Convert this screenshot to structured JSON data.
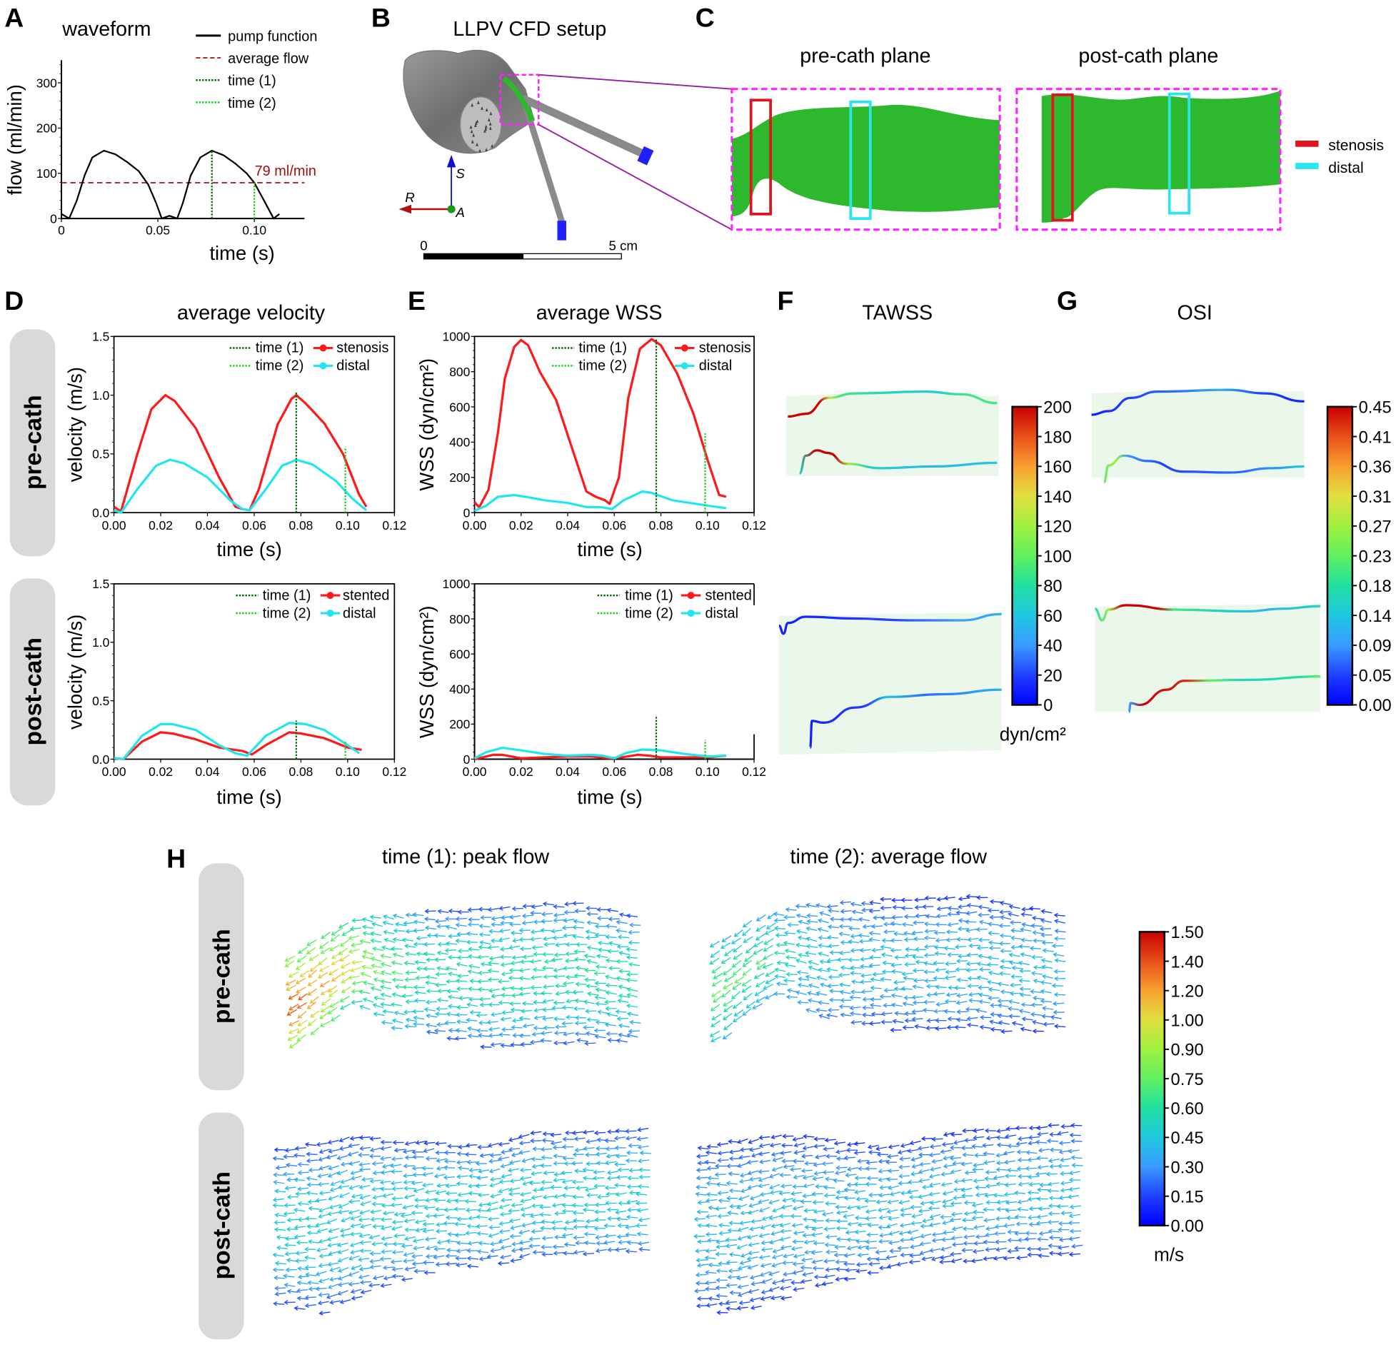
{
  "panel_labels": {
    "A": "A",
    "B": "B",
    "C": "C",
    "D": "D",
    "E": "E",
    "F": "F",
    "G": "G",
    "H": "H"
  },
  "titles": {
    "setup": "LLPV CFD setup",
    "pre_plane": "pre-cath plane",
    "post_plane": "post-cath plane",
    "velocity": "average velocity",
    "wss": "average WSS",
    "tawss": "TAWSS",
    "osi": "OSI",
    "h_time1": "time (1): peak flow",
    "h_time2": "time (2): average flow"
  },
  "row_labels": {
    "pre": "pre-cath",
    "post": "post-cath"
  },
  "setup": {
    "axis_s": "S",
    "axis_r": "R",
    "axis_a": "A",
    "scale_start": "0",
    "scale_end": "5 cm"
  },
  "plane_legend": [
    {
      "label": "stenosis",
      "color": "#e0141e"
    },
    {
      "label": "distal",
      "color": "#28e6ee"
    }
  ],
  "colors": {
    "vessel_green": "#2db82d",
    "zoom_box": "#ff22ff",
    "connector": "#9b1ca0",
    "wall_fill": "#ecf7ec",
    "pill": "#d9d9d9"
  },
  "colorbars": {
    "tawss": {
      "ticks": [
        "200",
        "180",
        "160",
        "140",
        "120",
        "100",
        "80",
        "60",
        "40",
        "20",
        "0"
      ],
      "unit": "dyn/cm²",
      "range": [
        0,
        200
      ]
    },
    "osi": {
      "ticks": [
        "0.45",
        "0.41",
        "0.36",
        "0.31",
        "0.27",
        "0.23",
        "0.18",
        "0.14",
        "0.09",
        "0.05",
        "0.00"
      ],
      "range": [
        0,
        0.45
      ]
    },
    "velocity": {
      "ticks": [
        "1.50",
        "1.40",
        "1.20",
        "1.00",
        "0.90",
        "0.75",
        "0.60",
        "0.45",
        "0.30",
        "0.15",
        "0.00"
      ],
      "unit": "m/s",
      "range": [
        0,
        1.5
      ]
    },
    "colormap": "rainbow (blue-cyan-green-yellow-red)"
  },
  "chart_data": [
    {
      "id": "waveform",
      "type": "line",
      "title": "waveform",
      "xlabel": "time (s)",
      "ylabel": "flow (ml/min)",
      "xlim": [
        0,
        0.126
      ],
      "ylim": [
        0,
        350
      ],
      "xticks": [
        0,
        0.05,
        0.1
      ],
      "xtick_labels": [
        "0",
        "0.05",
        "0.10"
      ],
      "yticks": [
        0,
        100,
        200,
        300
      ],
      "ytick_labels": [
        "0",
        "100",
        "200",
        "300"
      ],
      "series": [
        {
          "name": "pump function",
          "color": "#000000",
          "points": [
            [
              0,
              10
            ],
            [
              0.004,
              0
            ],
            [
              0.008,
              40
            ],
            [
              0.012,
              95
            ],
            [
              0.016,
              135
            ],
            [
              0.022,
              150
            ],
            [
              0.028,
              142
            ],
            [
              0.034,
              125
            ],
            [
              0.04,
              105
            ],
            [
              0.045,
              75
            ],
            [
              0.049,
              35
            ],
            [
              0.052,
              0
            ],
            [
              0.056,
              6
            ],
            [
              0.06,
              0
            ],
            [
              0.063,
              35
            ],
            [
              0.067,
              95
            ],
            [
              0.072,
              135
            ],
            [
              0.078,
              150
            ],
            [
              0.084,
              140
            ],
            [
              0.09,
              122
            ],
            [
              0.096,
              100
            ],
            [
              0.1,
              79
            ],
            [
              0.105,
              40
            ],
            [
              0.11,
              0
            ],
            [
              0.113,
              10
            ]
          ]
        }
      ],
      "hlines": [
        {
          "name": "average flow",
          "y": 79,
          "label": "79 ml/min",
          "color": "#a01010"
        }
      ],
      "vlines": [
        {
          "name": "time (1)",
          "x": 0.078,
          "ymax": 150,
          "color": "#0b6b0b"
        },
        {
          "name": "time (2)",
          "x": 0.1,
          "ymax": 79,
          "color": "#22cc22"
        }
      ],
      "legend": "top-right"
    },
    {
      "id": "velocity_pre",
      "type": "line",
      "title": "average velocity",
      "row": "pre-cath",
      "xlabel": "time (s)",
      "ylabel": "velocity (m/s)",
      "xlim": [
        0,
        0.12
      ],
      "ylim": [
        0,
        1.5
      ],
      "xticks": [
        0,
        0.02,
        0.04,
        0.06,
        0.08,
        0.1,
        0.12
      ],
      "xtick_labels": [
        "0.00",
        "0.02",
        "0.04",
        "0.06",
        "0.08",
        "0.10",
        "0.12"
      ],
      "yticks": [
        0,
        0.5,
        1.0,
        1.5
      ],
      "ytick_labels": [
        "0.0",
        "0.5",
        "1.0",
        "1.5"
      ],
      "series": [
        {
          "name": "stenosis",
          "color": "#ff1a1a",
          "points": [
            [
              0,
              0.05
            ],
            [
              0.003,
              0.01
            ],
            [
              0.01,
              0.5
            ],
            [
              0.016,
              0.88
            ],
            [
              0.022,
              1.0
            ],
            [
              0.026,
              0.95
            ],
            [
              0.035,
              0.72
            ],
            [
              0.045,
              0.3
            ],
            [
              0.052,
              0.05
            ],
            [
              0.055,
              0.03
            ],
            [
              0.058,
              0.02
            ],
            [
              0.062,
              0.2
            ],
            [
              0.07,
              0.75
            ],
            [
              0.076,
              0.97
            ],
            [
              0.078,
              1.0
            ],
            [
              0.082,
              0.93
            ],
            [
              0.09,
              0.76
            ],
            [
              0.098,
              0.5
            ],
            [
              0.105,
              0.15
            ],
            [
              0.108,
              0.05
            ]
          ]
        },
        {
          "name": "distal",
          "color": "#22e5f0",
          "points": [
            [
              0,
              0.02
            ],
            [
              0.003,
              0.0
            ],
            [
              0.01,
              0.2
            ],
            [
              0.018,
              0.4
            ],
            [
              0.024,
              0.45
            ],
            [
              0.03,
              0.42
            ],
            [
              0.04,
              0.3
            ],
            [
              0.05,
              0.1
            ],
            [
              0.055,
              0.03
            ],
            [
              0.058,
              0.02
            ],
            [
              0.065,
              0.2
            ],
            [
              0.072,
              0.4
            ],
            [
              0.078,
              0.45
            ],
            [
              0.085,
              0.41
            ],
            [
              0.095,
              0.27
            ],
            [
              0.102,
              0.12
            ],
            [
              0.108,
              0.02
            ]
          ]
        }
      ],
      "vlines": [
        {
          "name": "time (1)",
          "x": 0.078,
          "ymax": 1.03,
          "color": "#0b6b0b"
        },
        {
          "name": "time (2)",
          "x": 0.099,
          "ymax": 0.56,
          "color": "#22cc22"
        }
      ],
      "legend": "top-right"
    },
    {
      "id": "wss_pre",
      "type": "line",
      "title": "average WSS",
      "row": "pre-cath",
      "xlabel": "time (s)",
      "ylabel": "WSS (dyn/cm²)",
      "xlim": [
        0,
        0.12
      ],
      "ylim": [
        0,
        1000
      ],
      "xticks": [
        0,
        0.02,
        0.04,
        0.06,
        0.08,
        0.1,
        0.12
      ],
      "xtick_labels": [
        "0.00",
        "0.02",
        "0.04",
        "0.06",
        "0.08",
        "0.10",
        "0.12"
      ],
      "yticks": [
        0,
        200,
        400,
        600,
        800,
        1000
      ],
      "ytick_labels": [
        "0",
        "200",
        "400",
        "600",
        "800",
        "1000"
      ],
      "series": [
        {
          "name": "stenosis",
          "color": "#ff1a1a",
          "points": [
            [
              0,
              60
            ],
            [
              0.002,
              30
            ],
            [
              0.006,
              130
            ],
            [
              0.01,
              450
            ],
            [
              0.013,
              760
            ],
            [
              0.017,
              940
            ],
            [
              0.02,
              980
            ],
            [
              0.023,
              950
            ],
            [
              0.028,
              800
            ],
            [
              0.035,
              640
            ],
            [
              0.042,
              360
            ],
            [
              0.048,
              120
            ],
            [
              0.052,
              90
            ],
            [
              0.056,
              70
            ],
            [
              0.058,
              50
            ],
            [
              0.062,
              200
            ],
            [
              0.066,
              650
            ],
            [
              0.071,
              930
            ],
            [
              0.076,
              985
            ],
            [
              0.08,
              950
            ],
            [
              0.087,
              790
            ],
            [
              0.094,
              560
            ],
            [
              0.1,
              300
            ],
            [
              0.105,
              100
            ],
            [
              0.108,
              90
            ]
          ]
        },
        {
          "name": "distal",
          "color": "#22e5f0",
          "points": [
            [
              0,
              10
            ],
            [
              0.005,
              40
            ],
            [
              0.01,
              90
            ],
            [
              0.017,
              100
            ],
            [
              0.022,
              90
            ],
            [
              0.03,
              70
            ],
            [
              0.04,
              55
            ],
            [
              0.048,
              32
            ],
            [
              0.055,
              30
            ],
            [
              0.059,
              20
            ],
            [
              0.064,
              70
            ],
            [
              0.072,
              120
            ],
            [
              0.076,
              112
            ],
            [
              0.085,
              70
            ],
            [
              0.1,
              40
            ],
            [
              0.108,
              25
            ]
          ]
        }
      ],
      "vlines": [
        {
          "name": "time (1)",
          "x": 0.078,
          "ymax": 990,
          "color": "#0b6b0b"
        },
        {
          "name": "time (2)",
          "x": 0.099,
          "ymax": 450,
          "color": "#22cc22"
        }
      ],
      "legend": "top-right"
    },
    {
      "id": "velocity_post",
      "type": "line",
      "title": "average velocity",
      "row": "post-cath",
      "xlabel": "time (s)",
      "ylabel": "velocity (m/s)",
      "xlim": [
        0,
        0.12
      ],
      "ylim": [
        0,
        1.5
      ],
      "xticks": [
        0,
        0.02,
        0.04,
        0.06,
        0.08,
        0.1,
        0.12
      ],
      "xtick_labels": [
        "0.00",
        "0.02",
        "0.04",
        "0.06",
        "0.08",
        "0.10",
        "0.12"
      ],
      "yticks": [
        0,
        0.5,
        1.0,
        1.5
      ],
      "ytick_labels": [
        "0.0",
        "0.5",
        "1.0",
        "1.5"
      ],
      "series": [
        {
          "name": "stented",
          "color": "#ff1a1a",
          "points": [
            [
              0,
              0.01
            ],
            [
              0.004,
              0
            ],
            [
              0.012,
              0.15
            ],
            [
              0.02,
              0.23
            ],
            [
              0.025,
              0.22
            ],
            [
              0.035,
              0.17
            ],
            [
              0.045,
              0.1
            ],
            [
              0.055,
              0.07
            ],
            [
              0.059,
              0.04
            ],
            [
              0.065,
              0.12
            ],
            [
              0.075,
              0.23
            ],
            [
              0.08,
              0.22
            ],
            [
              0.09,
              0.18
            ],
            [
              0.1,
              0.1
            ],
            [
              0.106,
              0.08
            ]
          ]
        },
        {
          "name": "distal",
          "color": "#22e5f0",
          "points": [
            [
              0,
              0.01
            ],
            [
              0.004,
              0
            ],
            [
              0.012,
              0.2
            ],
            [
              0.02,
              0.3
            ],
            [
              0.025,
              0.3
            ],
            [
              0.035,
              0.25
            ],
            [
              0.045,
              0.12
            ],
            [
              0.052,
              0.05
            ],
            [
              0.057,
              0.03
            ],
            [
              0.065,
              0.2
            ],
            [
              0.075,
              0.31
            ],
            [
              0.082,
              0.3
            ],
            [
              0.09,
              0.25
            ],
            [
              0.1,
              0.12
            ],
            [
              0.105,
              0.05
            ]
          ]
        }
      ],
      "vlines": [
        {
          "name": "time (1)",
          "x": 0.078,
          "ymax": 0.33,
          "color": "#0b6b0b"
        },
        {
          "name": "time (2)",
          "x": 0.099,
          "ymax": 0.15,
          "color": "#22cc22"
        }
      ],
      "legend": "top-right"
    },
    {
      "id": "wss_post",
      "type": "line",
      "title": "average WSS",
      "row": "post-cath",
      "xlabel": "time (s)",
      "ylabel": "WSS (dyn/cm²)",
      "xlim": [
        0,
        0.12
      ],
      "ylim": [
        0,
        1000
      ],
      "xticks": [
        0,
        0.02,
        0.04,
        0.06,
        0.08,
        0.1,
        0.12
      ],
      "xtick_labels": [
        "0.00",
        "0.02",
        "0.04",
        "0.06",
        "0.08",
        "0.10",
        "0.12"
      ],
      "yticks": [
        0,
        200,
        400,
        600,
        800,
        1000
      ],
      "ytick_labels": [
        "0",
        "200",
        "400",
        "600",
        "800",
        "1000"
      ],
      "series": [
        {
          "name": "stented",
          "color": "#ff1a1a",
          "points": [
            [
              0,
              0
            ],
            [
              0.008,
              25
            ],
            [
              0.012,
              25
            ],
            [
              0.02,
              5
            ],
            [
              0.03,
              10
            ],
            [
              0.04,
              15
            ],
            [
              0.05,
              15
            ],
            [
              0.058,
              5
            ],
            [
              0.063,
              10
            ],
            [
              0.07,
              25
            ],
            [
              0.075,
              20
            ],
            [
              0.08,
              10
            ],
            [
              0.09,
              10
            ],
            [
              0.1,
              10
            ],
            [
              0.108,
              20
            ]
          ]
        },
        {
          "name": "distal",
          "color": "#22e5f0",
          "points": [
            [
              0,
              5
            ],
            [
              0.005,
              40
            ],
            [
              0.012,
              65
            ],
            [
              0.02,
              50
            ],
            [
              0.03,
              30
            ],
            [
              0.04,
              20
            ],
            [
              0.05,
              25
            ],
            [
              0.055,
              20
            ],
            [
              0.06,
              5
            ],
            [
              0.065,
              35
            ],
            [
              0.072,
              55
            ],
            [
              0.08,
              50
            ],
            [
              0.09,
              30
            ],
            [
              0.1,
              15
            ],
            [
              0.108,
              20
            ]
          ]
        }
      ],
      "vlines": [
        {
          "name": "time (1)",
          "x": 0.078,
          "ymax": 250,
          "color": "#0b6b0b"
        },
        {
          "name": "time (2)",
          "x": 0.099,
          "ymax": 110,
          "color": "#22cc22"
        }
      ],
      "legend": "top-right"
    }
  ]
}
